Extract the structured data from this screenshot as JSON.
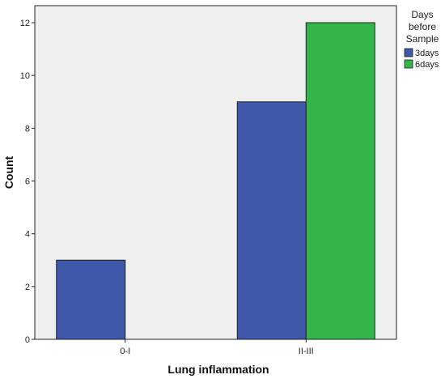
{
  "chart_data": {
    "type": "bar",
    "title": "",
    "xlabel": "Lung inflammation",
    "ylabel": "Count",
    "categories": [
      "0-I",
      "II-III"
    ],
    "series": [
      {
        "name": "3days",
        "values": [
          3,
          9
        ],
        "color": "#3f58a9"
      },
      {
        "name": "6days",
        "values": [
          0,
          12
        ],
        "color": "#33b54a"
      }
    ],
    "ylim": [
      0,
      12
    ],
    "yticks": [
      "0",
      "2",
      "4",
      "6",
      "8",
      "10",
      "12"
    ],
    "grid": false,
    "legend": {
      "title_lines": [
        "Days",
        "before",
        "Sample"
      ],
      "placement": "right"
    },
    "plot_background": "#efefef"
  }
}
